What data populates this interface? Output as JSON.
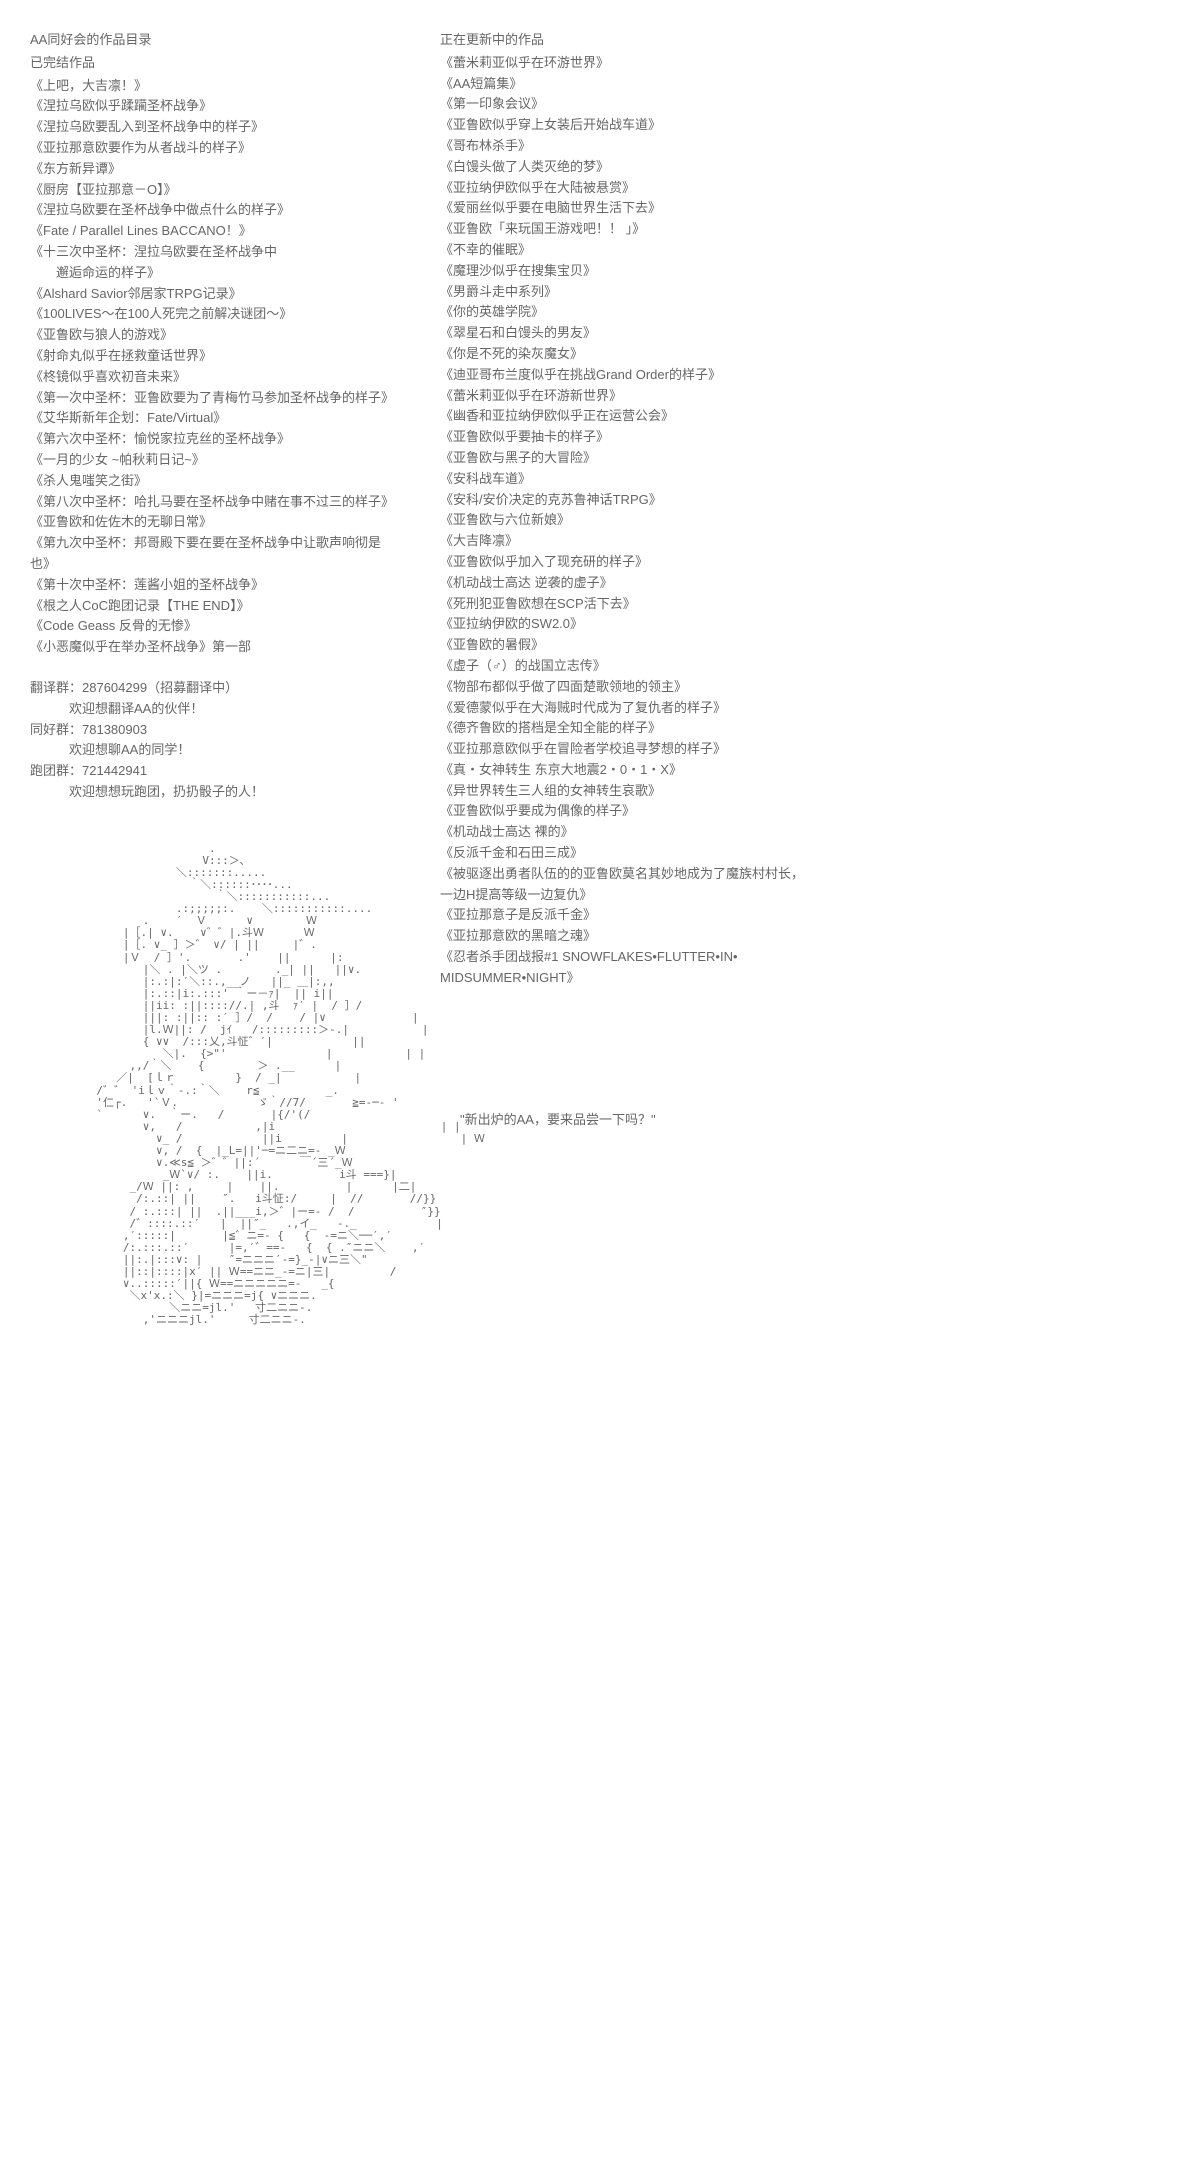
{
  "left": {
    "header": "AA同好会的作品目录",
    "completed_title": "已完结作品",
    "completed_works": [
      "《上吧，大吉凛！》",
      "《涅拉乌欧似乎蹂躏圣杯战争》",
      "《涅拉乌欧要乱入到圣杯战争中的样子》",
      "《亚拉那意欧要作为从者战斗的样子》",
      "《东方新异谭》",
      "《厨房【亚拉那意－O】》",
      "《涅拉乌欧要在圣杯战争中做点什么的样子》",
      "《Fate / Parallel Lines BACCANO！》",
      "《十三次中圣杯：涅拉乌欧要在圣杯战争中",
      "　邂逅命运的样子》",
      "《Alshard Savior邻居家TRPG记录》",
      "《100LIVES～在100人死完之前解决谜团～》",
      "《亚鲁欧与狼人的游戏》",
      "《射命丸似乎在拯救童话世界》",
      "《柊镜似乎喜欢初音未来》",
      "《第一次中圣杯：亚鲁欧要为了青梅竹马参加圣杯战争的样子》",
      "《艾华斯新年企划：Fate/Virtual》",
      "《第六次中圣杯：愉悦家拉克丝的圣杯战争》",
      "《一月的少女 ~帕秋莉日记~》",
      "《杀人鬼嗤笑之街》",
      "《第八次中圣杯：哈扎马要在圣杯战争中赌在事不过三的样子》",
      "《亚鲁欧和佐佐木的无聊日常》",
      "《第九次中圣杯：邦哥殿下要在要在圣杯战争中让歌声响彻是也》",
      "《第十次中圣杯：莲酱小姐的圣杯战争》",
      "《根之人CoC跑团记录【THE END】》",
      "《Code Geass 反骨的无惨》",
      "《小恶魔似乎在举办圣杯战争》第一部"
    ],
    "groups": {
      "translate": {
        "label": "翻译群：287604299（招募翻译中）",
        "desc": "欢迎想翻译AA的伙伴！"
      },
      "fan": {
        "label": "同好群：781380903",
        "desc": "欢迎想聊AA的同学！"
      },
      "run": {
        "label": "跑团群：721442941",
        "desc": "欢迎想想玩跑团，扔扔骰子的人！"
      }
    }
  },
  "right": {
    "updating_title": "正在更新中的作品",
    "updating_works": [
      "《蕾米莉亚似乎在环游世界》",
      "《AA短篇集》",
      "《第一印象会议》",
      "《亚鲁欧似乎穿上女装后开始战车道》",
      "《哥布林杀手》",
      "《白馒头做了人类灭绝的梦》",
      "《亚拉纳伊欧似乎在大陆被悬赏》",
      "《爱丽丝似乎要在电脑世界生活下去》",
      "《亚鲁欧「来玩国王游戏吧！！ 」》",
      "《不幸的催眠》",
      "《魔理沙似乎在搜集宝贝》",
      "《男爵斗走中系列》",
      "《你的英雄学院》",
      "《翠星石和白馒头的男友》",
      "《你是不死的染灰魔女》",
      "《迪亚哥布兰度似乎在挑战Grand Order的样子》",
      "《蕾米莉亚似乎在环游新世界》",
      "《幽香和亚拉纳伊欧似乎正在运营公会》",
      "《亚鲁欧似乎要抽卡的样子》",
      "《亚鲁欧与黑子的大冒险》",
      "《安科战车道》",
      "《安科/安价决定的克苏鲁神话TRPG》",
      "《亚鲁欧与六位新娘》",
      "《大吉降凛》",
      "《亚鲁欧似乎加入了现充研的样子》",
      "《机动战士高达 逆袭的虚子》",
      "《死刑犯亚鲁欧想在SCP活下去》",
      "《亚拉纳伊欧的SW2.0》",
      "《亚鲁欧的暑假》",
      "《虚子（♂）的战国立志传》",
      "《物部布都似乎做了四面楚歌领地的领主》",
      "《爱德蒙似乎在大海贼时代成为了复仇者的样子》",
      "《德齐鲁欧的搭档是全知全能的样子》",
      "《亚拉那意欧似乎在冒险者学校追寻梦想的样子》",
      "《真・女神转生 东京大地震2・0・1・X》",
      "《异世界转生三人组的女神转生哀歌》",
      "《亚鲁欧似乎要成为偶像的样子》",
      "《机动战士高达 裸的》",
      "《反派千金和石田三成》",
      "《被驱逐出勇者队伍的的亚鲁欧莫名其妙地成为了魔族村村长，",
      "一边H提高等级一边复仇》",
      "《亚拉那意子是反派千金》",
      "《亚拉那意欧的黑暗之魂》",
      "《忍者杀手团战报#1 SNOWFLAKES•FLUTTER•IN•",
      "MIDSUMMER•NIGHT》"
    ],
    "caption": "\"新出炉的AA，要来品尝一下吗？\""
  },
  "ascii_art": "                        .\n                       V:::＞､\n                   ＼:::::::.....\n                     ｀＼::::::････...\n                         ｀＼:::::::::::...\n                   .:;;;;;:.    ＼:::::::::::....\n              .    ′  Ｖ      ∨        Ｗ\n           |［.| ∨.    ∨゛゛|.斗Ｗ      Ｗ\n           |［. ∨_ ］＞゛ ∨/ | ||     |゛.\n           |Ｖ  / ］'.       .'    ||      |:\n              |＼ . |＼ツ .        ._| ||   ||∨.\n              |:.:|:′＼::.,__ノ   ||_ ＿|:,,\n              |:.::|i:.:::' ｀ー－ｧ|  || i||\n              ||ii: :||:::://.| ,斗  ｧ′ |  / ］/\n              |||: :||:: :′ ］/  /    / |∨             |\n              |l.Ｗ||: /  jｲ   /:::::::::＞-.|           |\n              { ∨∨  /:::乂,斗怔゛′|            ||\n                 ＼|.  {>\"'               |           | |\n            ,,/｀＼    {        ＞ .__      |\n          ／|  [ｌｒ         }  / _|           |\n       /゛゛ 'iｌｖ｀-.:｀＼    r≦          _.\n       '仁┌.   '`Ｖ.            ゞ｀//7/       ≧=-─- '\n       `      ∨.  ｀ー.   /       |{/'(/\n              ∨,   /           ,|i                         | |\n                ∨_ /            ||i         |                 | Ｗ\n                ∨, /  {  |_L=||'─=ニ二ニ=- _Ｗ\n                ∨.≪s≦ ＞゛゛||:´      ￣´三´_Ｗ\n                 _Ｗ`∨/ :.    ||i.          i斗 ===}|\n            _/Ｗ ||: ,     |    ||.          |      |二|\n             /:.::| ||    ″.   i斗怔:/     |  //       //}}\n            / :.:::| ||  .||___i,＞゛|ー=- /  /          ″}}\n            /゛::::.::′   |  ||″_   .,イ_   -._            |\n           ,′:::::|       |≦゛ニ=- {   {  -=ニ＼──′,′\n           /:.:::.::′      |=,′゛==-   {  { .″ニニ＼    ,′\n           ||:.|:::∨: |    ″=ニニニ′-=}_-|∨ニ三＼\"\n           ||::|::::|x′ || Ｗ==ニニ_-=ニ|三|         /\n           ∨..:::::′||{ Ｗ==ニニニニニ=-   _{\n            ＼x'x.:＼ }|=ニニニ=j{ ∨ニニニ.\n                  ＼ニニ=jl.'   寸二ニニ-.\n              ,'ニニニjl.'     寸二ニニ-."
}
